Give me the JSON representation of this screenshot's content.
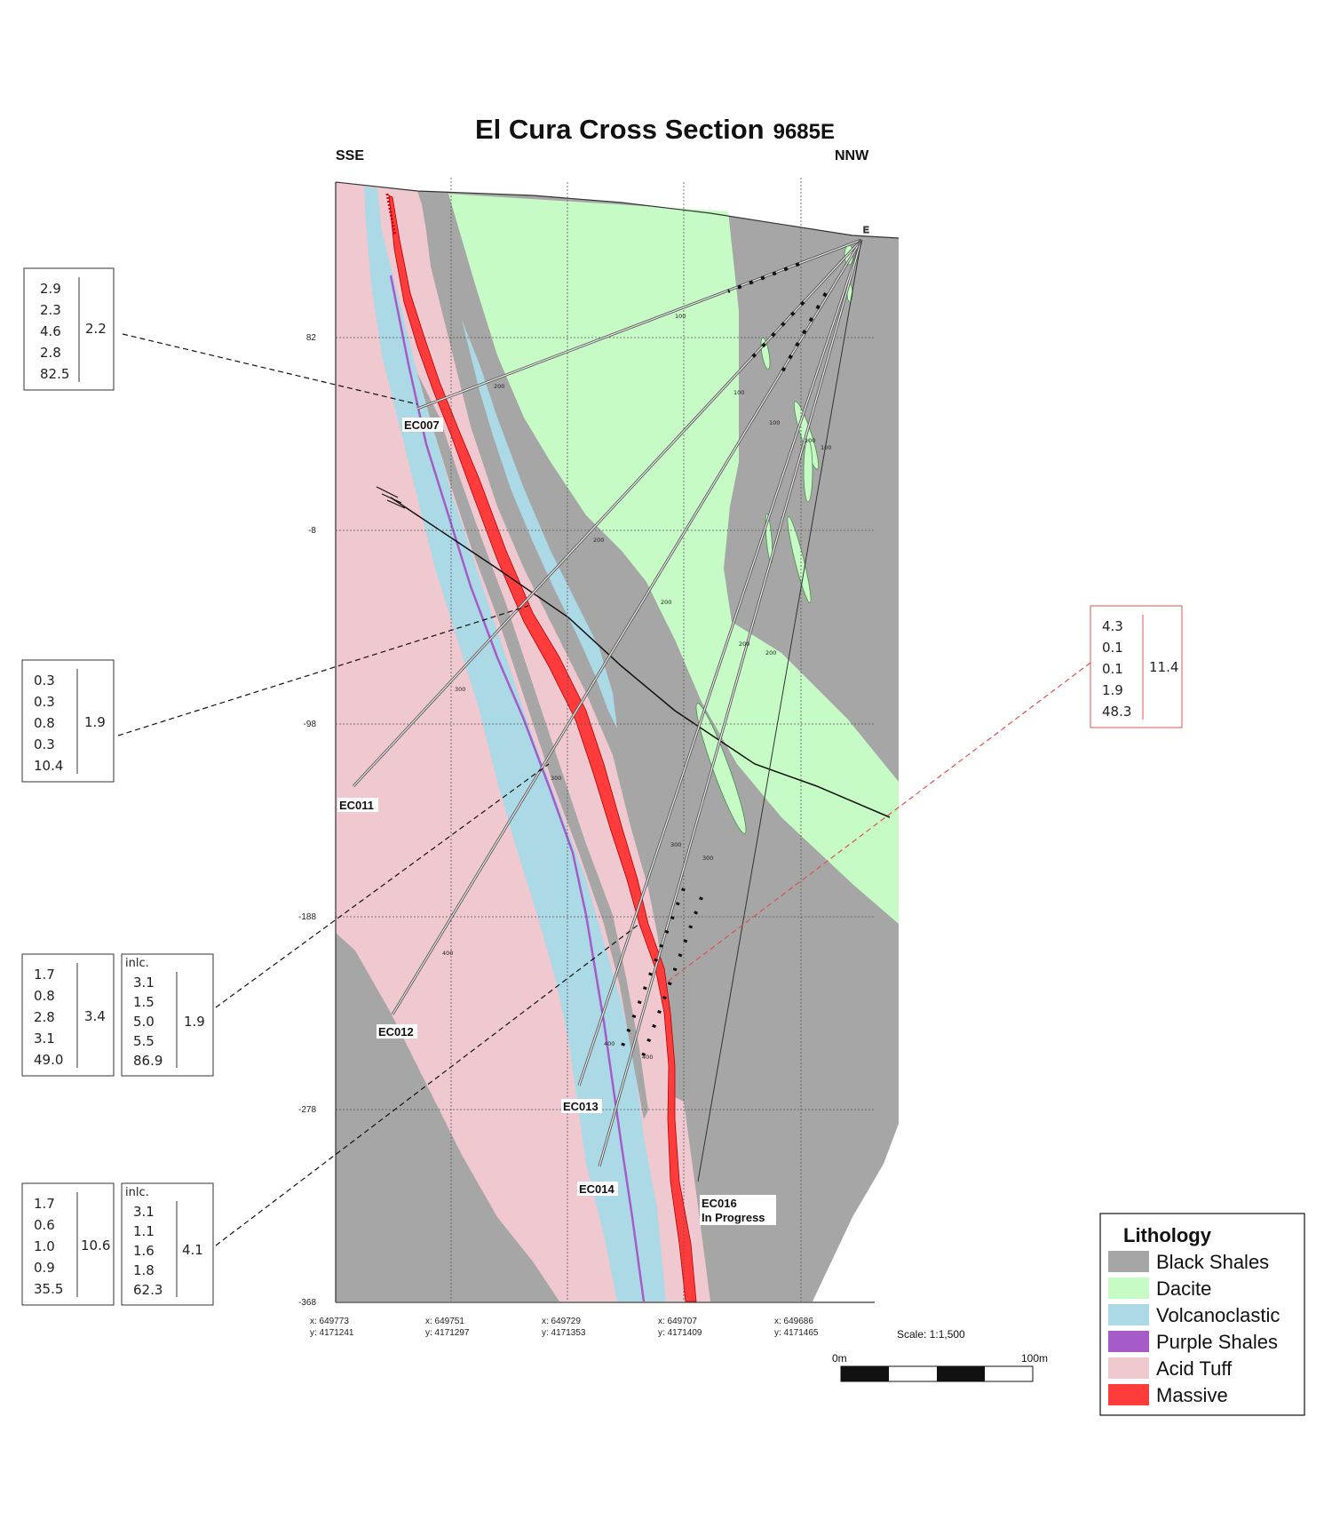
{
  "title": "El Cura Cross Section",
  "title_suffix": "9685E",
  "direction_left": "SSE",
  "direction_right": "NNW",
  "elevation_labels": [
    "82",
    "-8",
    "-98",
    "-188",
    "-278",
    "-368"
  ],
  "easting_labels": [
    {
      "x": "x: 649773",
      "y": "y: 4171241"
    },
    {
      "x": "x: 649751",
      "y": "y: 4171297"
    },
    {
      "x": "x: 649729",
      "y": "y: 4171353"
    },
    {
      "x": "x: 649707",
      "y": "y: 4171409"
    },
    {
      "x": "x: 649686",
      "y": "y: 4171465"
    }
  ],
  "collar_label": "E",
  "drill_holes": [
    {
      "id": "EC007",
      "status": ""
    },
    {
      "id": "EC011",
      "status": ""
    },
    {
      "id": "EC012",
      "status": ""
    },
    {
      "id": "EC013",
      "status": ""
    },
    {
      "id": "EC014",
      "status": ""
    },
    {
      "id": "EC016",
      "status": "In Progress"
    }
  ],
  "depth_marks": [
    "100",
    "100",
    "100",
    "100",
    "100",
    "200",
    "200",
    "200",
    "200",
    "200",
    "300",
    "300",
    "300",
    "300",
    "400",
    "400",
    "400"
  ],
  "assay_boxes": [
    {
      "values": [
        "2.9",
        "2.3",
        "4.6",
        "2.8",
        "82.5"
      ],
      "result": "2.2"
    },
    {
      "values": [
        "0.3",
        "0.3",
        "0.8",
        "0.3",
        "10.4"
      ],
      "result": "1.9"
    },
    {
      "values": [
        "1.7",
        "0.8",
        "2.8",
        "3.1",
        "49.0"
      ],
      "result": "3.4",
      "incl": {
        "label": "inlc.",
        "values": [
          "3.1",
          "1.5",
          "5.0",
          "5.5",
          "86.9"
        ],
        "result": "1.9"
      }
    },
    {
      "values": [
        "1.7",
        "0.6",
        "1.0",
        "0.9",
        "35.5"
      ],
      "result": "10.6",
      "incl": {
        "label": "inlc.",
        "values": [
          "3.1",
          "1.1",
          "1.6",
          "1.8",
          "62.3"
        ],
        "result": "4.1"
      }
    },
    {
      "values": [
        "4.3",
        "0.1",
        "0.1",
        "1.9",
        "48.3"
      ],
      "result": "11.4"
    }
  ],
  "scale": {
    "label": "Scale: 1:1,500",
    "start": "0m",
    "end": "100m"
  },
  "legend": {
    "title": "Lithology",
    "items": [
      {
        "name": "Black Shales",
        "color": "#a6a6a6"
      },
      {
        "name": "Dacite",
        "color": "#c6fbc6"
      },
      {
        "name": "Volcanoclastic",
        "color": "#acd9e6"
      },
      {
        "name": "Purple Shales",
        "color": "#a55cc8"
      },
      {
        "name": "Acid Tuff",
        "color": "#f0c8d0"
      },
      {
        "name": "Massive",
        "color": "#ff3b3b"
      }
    ]
  },
  "colors": {
    "black_shales": "#a6a6a6",
    "dacite": "#c6fbc6",
    "volcanoclastic": "#acd9e6",
    "purple_shales": "#a55cc8",
    "acid_tuff": "#f0c8d0",
    "massive": "#ff3b3b",
    "red_box": "#e05050"
  }
}
